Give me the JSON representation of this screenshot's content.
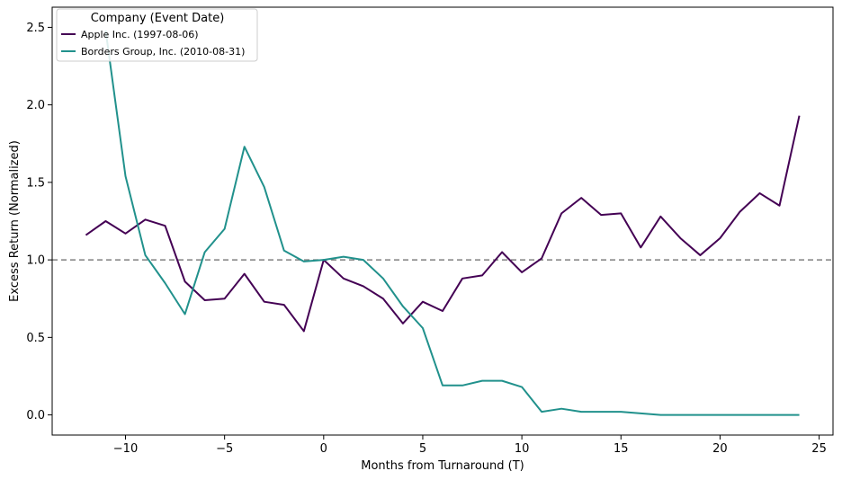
{
  "chart_data": {
    "type": "line",
    "xlabel": "Months from Turnaround (T)",
    "ylabel": "Excess Return (Normalized)",
    "xlim": [
      -13.7,
      25.7
    ],
    "ylim": [
      -0.13,
      2.63
    ],
    "xticks": [
      -10,
      -5,
      0,
      5,
      10,
      15,
      20,
      25
    ],
    "yticks": [
      0.0,
      0.5,
      1.0,
      1.5,
      2.0,
      2.5
    ],
    "xtick_labels": [
      "−10",
      "−5",
      "0",
      "5",
      "10",
      "15",
      "20",
      "25"
    ],
    "ytick_labels": [
      "0.0",
      "0.5",
      "1.0",
      "1.5",
      "2.0",
      "2.5"
    ],
    "reference_line": {
      "y": 1.0,
      "style": "dashed",
      "color": "#808080"
    },
    "legend": {
      "title": "Company (Event Date)",
      "placement": "top-left"
    },
    "x": [
      -12,
      -11,
      -10,
      -9,
      -8,
      -7,
      -6,
      -5,
      -4,
      -3,
      -2,
      -1,
      0,
      1,
      2,
      3,
      4,
      5,
      6,
      7,
      8,
      9,
      10,
      11,
      12,
      13,
      14,
      15,
      16,
      17,
      18,
      19,
      20,
      21,
      22,
      23,
      24
    ],
    "series": [
      {
        "name": "Apple Inc. (1997-08-06)",
        "color": "#440154",
        "x": [
          -12,
          -11,
          -10,
          -9,
          -8,
          -7,
          -6,
          -5,
          -4,
          -3,
          -2,
          -1,
          0,
          1,
          2,
          3,
          4,
          5,
          6,
          7,
          8,
          9,
          10,
          11,
          12,
          13,
          14,
          15,
          16,
          17,
          18,
          19,
          20,
          21,
          22,
          23,
          24
        ],
        "values": [
          1.16,
          1.25,
          1.17,
          1.26,
          1.22,
          0.86,
          0.74,
          0.75,
          0.91,
          0.73,
          0.71,
          0.54,
          1.0,
          0.88,
          0.83,
          0.75,
          0.59,
          0.73,
          0.67,
          0.88,
          0.9,
          1.05,
          0.92,
          1.01,
          1.3,
          1.4,
          1.29,
          1.3,
          1.08,
          1.28,
          1.14,
          1.03,
          1.14,
          1.31,
          1.43,
          1.35,
          1.93
        ]
      },
      {
        "name": "Borders Group, Inc. (2010-08-31)",
        "color": "#21918c",
        "x": [
          -11,
          -10,
          -9,
          -8,
          -7,
          -6,
          -5,
          -4,
          -3,
          -2,
          -1,
          0,
          1,
          2,
          3,
          4,
          5,
          6,
          7,
          8,
          9,
          10,
          11,
          12,
          13,
          14,
          15,
          16,
          17,
          18,
          19,
          20,
          21,
          22,
          23,
          24
        ],
        "values": [
          2.48,
          1.54,
          1.03,
          0.85,
          0.65,
          1.05,
          1.2,
          1.73,
          1.47,
          1.06,
          0.99,
          1.0,
          1.02,
          1.0,
          0.88,
          0.7,
          0.56,
          0.19,
          0.19,
          0.22,
          0.22,
          0.18,
          0.02,
          0.04,
          0.02,
          0.02,
          0.02,
          0.01,
          0.0,
          0.0,
          0.0,
          0.0,
          0.0,
          0.0,
          0.0,
          0.0
        ]
      }
    ]
  }
}
